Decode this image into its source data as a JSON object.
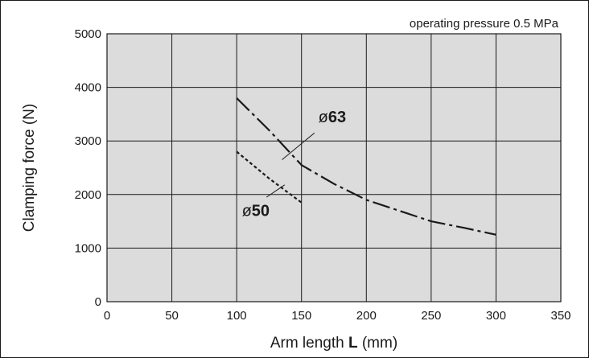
{
  "chart_data": {
    "type": "line",
    "annotation": "operating pressure 0.5 MPa",
    "xlabel": {
      "prefix": "Arm length ",
      "bold": "L",
      "suffix": " (mm)"
    },
    "ylabel": "Clamping force (N)",
    "xlim": [
      0,
      350
    ],
    "ylim": [
      0,
      5000
    ],
    "x_ticks": [
      0,
      50,
      100,
      150,
      200,
      250,
      300,
      350
    ],
    "y_ticks": [
      0,
      1000,
      2000,
      3000,
      4000,
      5000
    ],
    "grid": true,
    "series": [
      {
        "name": "ø63",
        "label_symbol": "ø",
        "label_number": "63",
        "line_style": "dash-dot",
        "x": [
          100,
          125,
          150,
          175,
          200,
          225,
          250,
          275,
          300
        ],
        "y": [
          3800,
          3200,
          2550,
          2200,
          1900,
          1700,
          1500,
          1380,
          1250
        ]
      },
      {
        "name": "ø50",
        "label_symbol": "ø",
        "label_number": "50",
        "line_style": "dotted",
        "x": [
          100,
          125,
          150
        ],
        "y": [
          2800,
          2300,
          1850
        ]
      }
    ]
  },
  "colors": {
    "plot_background": "#dcdcdc",
    "grid": "#1a1a1a",
    "series_line": "#1a1a1a"
  }
}
